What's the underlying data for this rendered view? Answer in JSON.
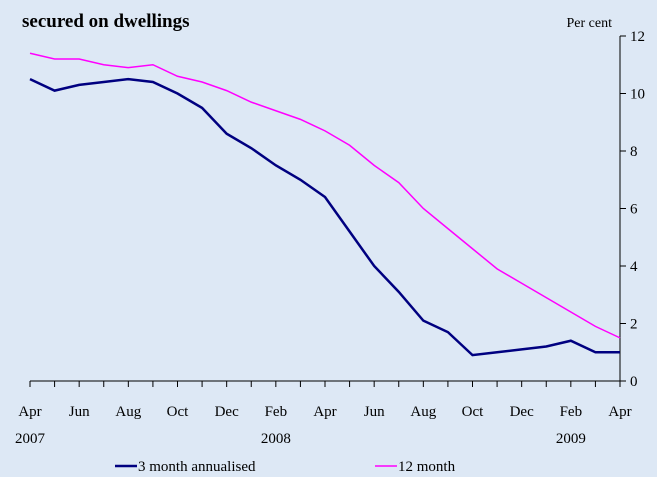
{
  "chart_data": {
    "type": "line",
    "title": "secured on dwellings",
    "y_label": "Per cent",
    "categories": [
      "Apr",
      null,
      "Jun",
      null,
      "Aug",
      null,
      "Oct",
      null,
      "Dec",
      null,
      "Feb",
      null,
      "Apr",
      null,
      "Jun",
      null,
      "Aug",
      null,
      "Oct",
      null,
      "Dec",
      null,
      "Feb",
      null,
      "Apr"
    ],
    "year_labels": [
      "2007",
      null,
      null,
      null,
      null,
      null,
      null,
      null,
      null,
      null,
      "2008",
      null,
      null,
      null,
      null,
      null,
      null,
      null,
      null,
      null,
      null,
      null,
      "2009",
      null,
      null
    ],
    "series": [
      {
        "name": "3 month annualised",
        "color": "#000080",
        "values": [
          10.5,
          10.1,
          10.3,
          10.4,
          10.5,
          10.4,
          10.0,
          9.5,
          8.6,
          8.1,
          7.5,
          7.0,
          6.4,
          5.2,
          4.0,
          3.1,
          2.1,
          1.7,
          0.9,
          1.0,
          1.1,
          1.2,
          1.4,
          1.0,
          1.0
        ]
      },
      {
        "name": "12 month",
        "color": "#ff00ff",
        "values": [
          11.4,
          11.2,
          11.2,
          11.0,
          10.9,
          11.0,
          10.6,
          10.4,
          10.1,
          9.7,
          9.4,
          9.1,
          8.7,
          8.2,
          7.5,
          6.9,
          6.0,
          5.3,
          4.6,
          3.9,
          3.4,
          2.9,
          2.4,
          1.9,
          1.5
        ]
      }
    ],
    "ylim": [
      0,
      12
    ],
    "yticks": [
      0,
      2,
      4,
      6,
      8,
      10,
      12
    ],
    "y_axis_side": "right",
    "grid": false
  }
}
